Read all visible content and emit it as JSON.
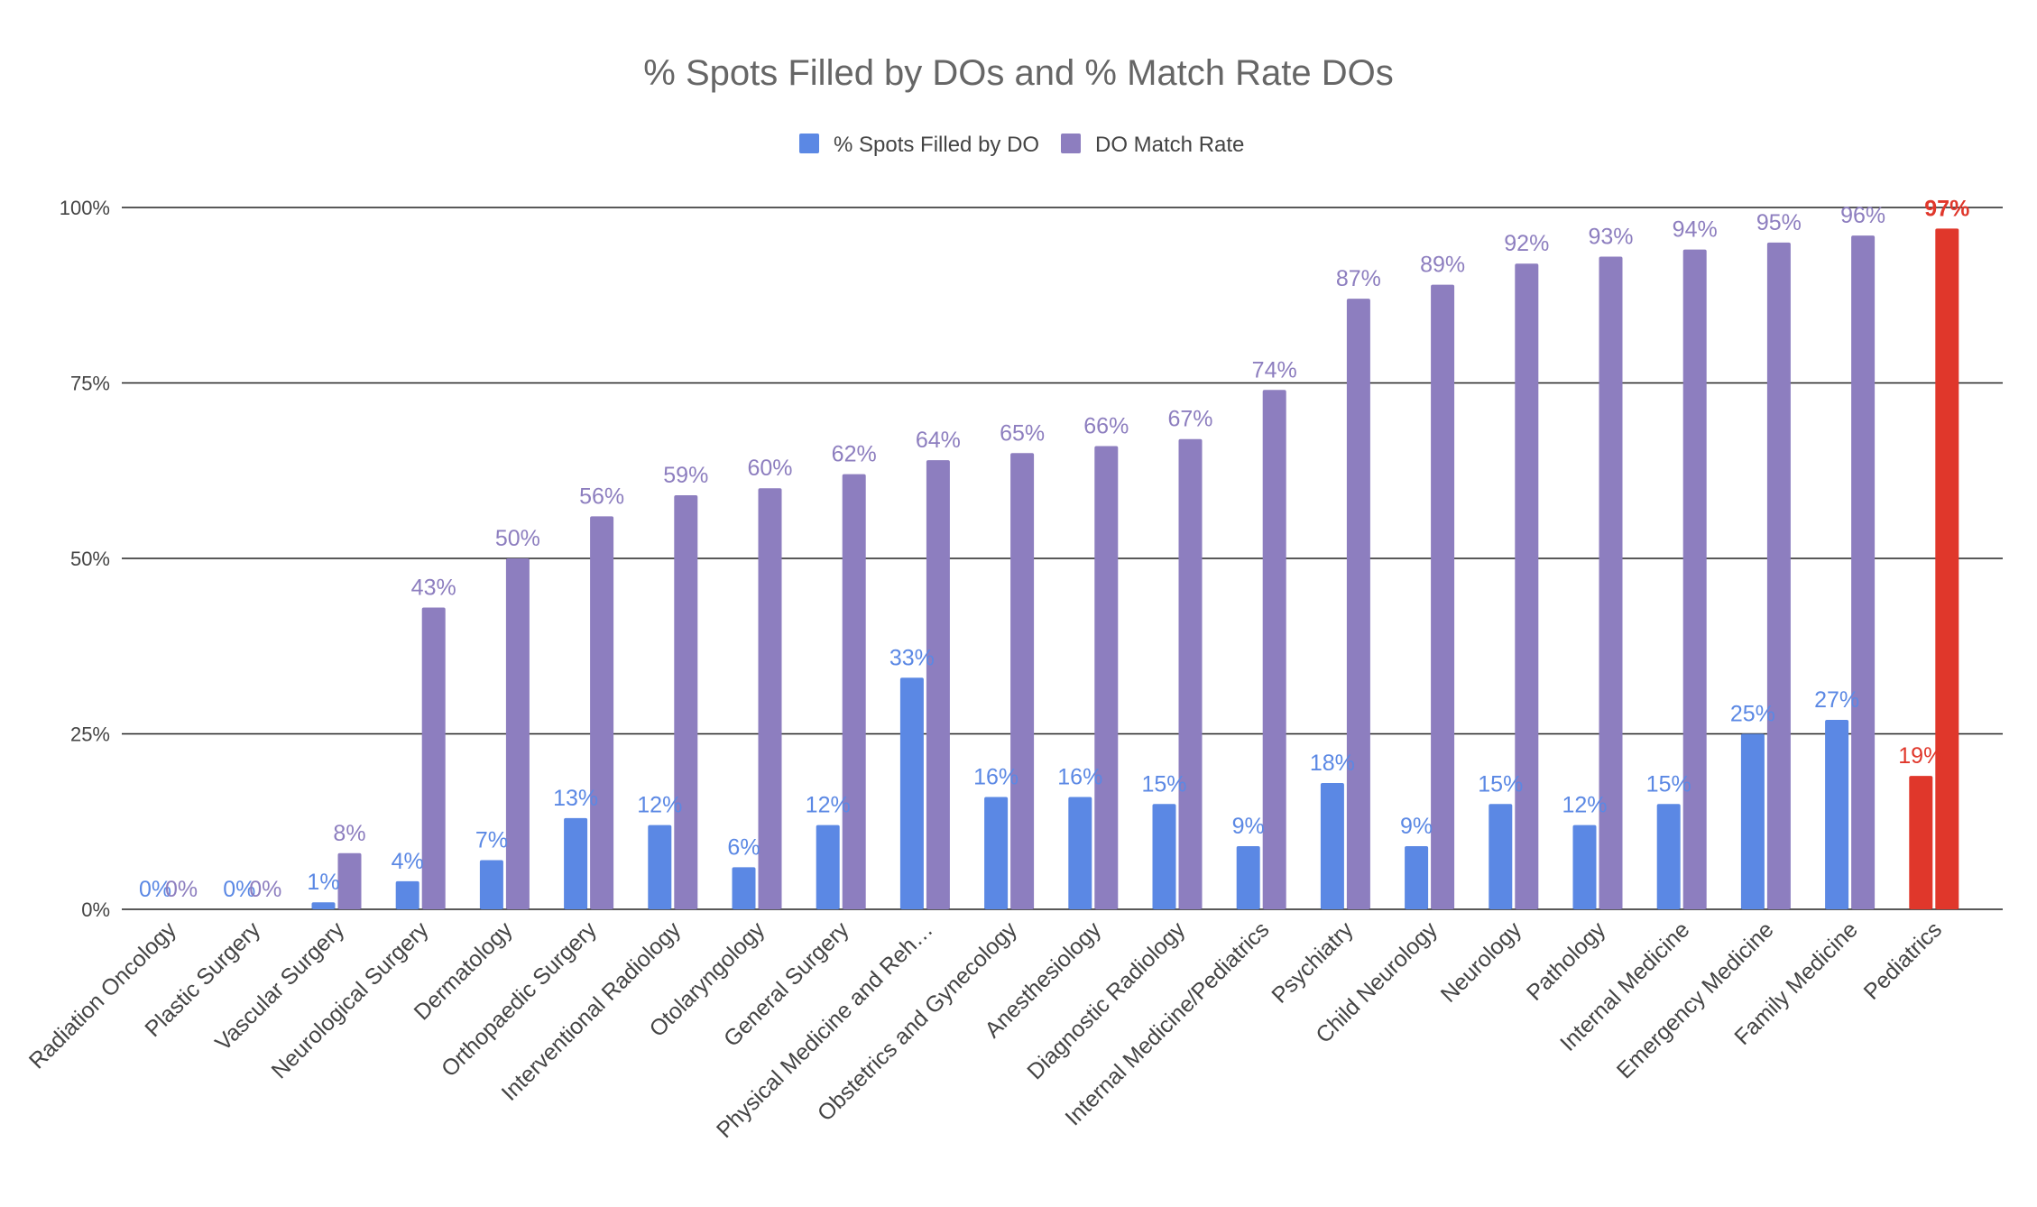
{
  "chart_data": {
    "type": "bar",
    "title": "% Spots Filled by DOs and % Match Rate DOs",
    "xlabel": "",
    "ylabel": "",
    "ylim": [
      0,
      100
    ],
    "yticks": [
      0,
      25,
      50,
      75,
      100
    ],
    "ytick_labels": [
      "0%",
      "25%",
      "50%",
      "75%",
      "100%"
    ],
    "grid": true,
    "legend_position": "top",
    "categories": [
      "Radiation Oncology",
      "Plastic Surgery",
      "Vascular Surgery",
      "Neurological Surgery",
      "Dermatology",
      "Orthopaedic Surgery",
      "Interventional Radiology",
      "Otolaryngology",
      "General Surgery",
      "Physical Medicine and Reh…",
      "Obstetrics and Gynecology",
      "Anesthesiology",
      "Diagnostic Radiology",
      "Internal Medicine/Pediatrics",
      "Psychiatry",
      "Child Neurology",
      "Neurology",
      "Pathology",
      "Internal Medicine",
      "Emergency Medicine",
      "Family Medicine",
      "Pediatrics"
    ],
    "series": [
      {
        "name": "% Spots Filled by DO",
        "color": "#5b88e4",
        "values": [
          0,
          0,
          1,
          4,
          7,
          13,
          12,
          6,
          12,
          33,
          16,
          16,
          15,
          9,
          18,
          9,
          15,
          12,
          15,
          25,
          27,
          19
        ],
        "labels": [
          "0%",
          "0%",
          "1%",
          "4%",
          "7%",
          "13%",
          "12%",
          "6%",
          "12%",
          "33%",
          "16%",
          "16%",
          "15%",
          "9%",
          "18%",
          "9%",
          "15%",
          "12%",
          "15%",
          "25%",
          "27%",
          "19%"
        ]
      },
      {
        "name": "DO Match Rate",
        "color": "#8d7ebf",
        "values": [
          0,
          0,
          8,
          43,
          50,
          56,
          59,
          60,
          62,
          64,
          65,
          66,
          67,
          74,
          87,
          89,
          92,
          93,
          94,
          95,
          96,
          97
        ],
        "labels": [
          "0%",
          "0%",
          "8%",
          "43%",
          "50%",
          "56%",
          "59%",
          "60%",
          "62%",
          "64%",
          "65%",
          "66%",
          "67%",
          "74%",
          "87%",
          "89%",
          "92%",
          "93%",
          "94%",
          "95%",
          "96%",
          "97%"
        ]
      }
    ],
    "highlight": {
      "category": "Pediatrics",
      "color": "#e0372b"
    }
  }
}
